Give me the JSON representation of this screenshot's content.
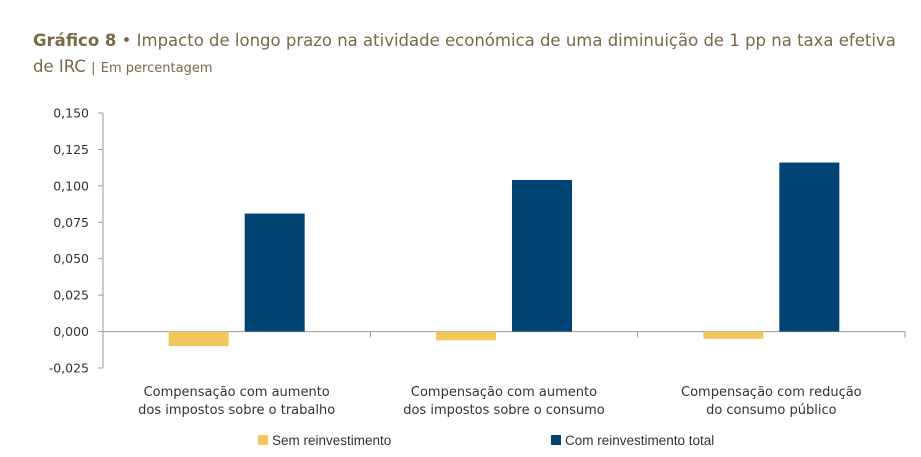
{
  "chart_data": {
    "type": "bar",
    "title_number": "Gráfico 8",
    "title_separator": "•",
    "title": "Impacto de longo prazo na atividade económica de uma diminuição de 1 pp na taxa efetiva de IRC",
    "unit_separator": "|",
    "subtitle": "Em percentagem",
    "categories": [
      [
        "Compensação com aumento",
        "dos impostos sobre o trabalho"
      ],
      [
        "Compensação com aumento",
        "dos impostos sobre o consumo"
      ],
      [
        "Compensação com redução",
        "do consumo público"
      ]
    ],
    "series": [
      {
        "name": "Sem reinvestimento",
        "color": "#f2c75c",
        "values": [
          -0.01,
          -0.006,
          -0.005
        ]
      },
      {
        "name": "Com reinvestimento total",
        "color": "#004375",
        "values": [
          0.081,
          0.104,
          0.116
        ]
      }
    ],
    "ylim": [
      -0.025,
      0.15
    ],
    "yticks": [
      "0,150",
      "0,125",
      "0,100",
      "0,075",
      "0,050",
      "0,025",
      "0,000",
      "-0,025"
    ],
    "ytick_values": [
      0.15,
      0.125,
      0.1,
      0.075,
      0.05,
      0.025,
      0,
      -0.025
    ],
    "grid": false,
    "legend_position": "bottom"
  }
}
